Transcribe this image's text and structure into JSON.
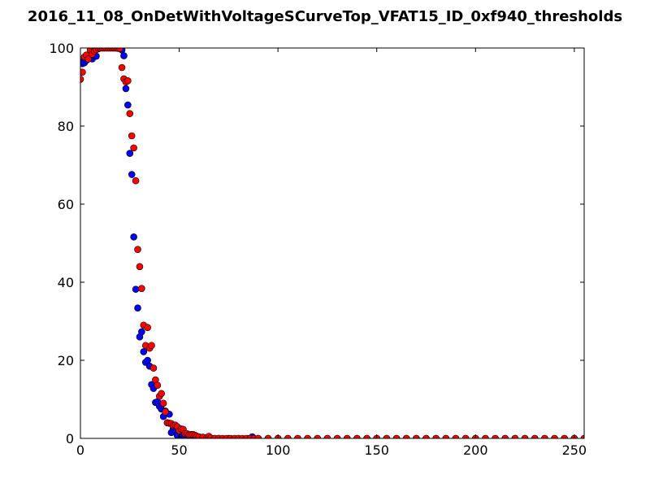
{
  "chart_data": {
    "type": "scatter",
    "title": "2016_11_08_OnDetWithVoltageSCurveTop_VFAT15_ID_0xf940_thresholds",
    "xlabel": "",
    "ylabel": "",
    "xlim": [
      0,
      255
    ],
    "ylim": [
      0,
      100
    ],
    "xticks": [
      0,
      50,
      100,
      150,
      200,
      250
    ],
    "yticks": [
      0,
      20,
      40,
      60,
      80,
      100
    ],
    "grid": false,
    "legend": "none",
    "series": [
      {
        "color": "#0000ff",
        "points": [
          [
            0,
            96.5
          ],
          [
            1,
            96.0
          ],
          [
            2,
            96.2
          ],
          [
            3,
            96.8
          ],
          [
            4,
            97.3
          ],
          [
            5,
            97.6
          ],
          [
            6,
            97.2
          ],
          [
            7,
            98.0
          ],
          [
            8,
            97.9
          ],
          [
            9,
            99.8
          ],
          [
            10,
            100
          ],
          [
            11,
            100
          ],
          [
            12,
            100
          ],
          [
            13,
            100
          ],
          [
            14,
            100
          ],
          [
            15,
            100
          ],
          [
            16,
            100
          ],
          [
            17,
            100
          ],
          [
            18,
            100
          ],
          [
            19,
            100
          ],
          [
            20,
            100
          ],
          [
            21,
            99.5
          ],
          [
            22,
            98.0
          ],
          [
            23,
            89.6
          ],
          [
            24,
            85.4
          ],
          [
            25,
            73.0
          ],
          [
            26,
            67.6
          ],
          [
            27,
            51.6
          ],
          [
            28,
            38.2
          ],
          [
            29,
            33.4
          ],
          [
            30,
            26.0
          ],
          [
            31,
            27.3
          ],
          [
            32,
            22.2
          ],
          [
            33,
            19.5
          ],
          [
            34,
            20.0
          ],
          [
            35,
            18.5
          ],
          [
            36,
            13.8
          ],
          [
            37,
            12.8
          ],
          [
            38,
            9.2
          ],
          [
            39,
            9.4
          ],
          [
            40,
            8.2
          ],
          [
            41,
            7.5
          ],
          [
            42,
            5.6
          ],
          [
            43,
            7.0
          ],
          [
            44,
            4.0
          ],
          [
            45,
            6.2
          ],
          [
            46,
            1.5
          ],
          [
            47,
            2.5
          ],
          [
            48,
            2.0
          ],
          [
            49,
            0.8
          ],
          [
            50,
            1.8
          ],
          [
            51,
            1.0
          ],
          [
            52,
            0.7
          ],
          [
            53,
            0.4
          ],
          [
            54,
            0.2
          ],
          [
            55,
            0.5
          ],
          [
            56,
            0.3
          ],
          [
            57,
            0.6
          ],
          [
            58,
            0.2
          ],
          [
            59,
            0.1
          ],
          [
            60,
            0
          ],
          [
            61,
            0.1
          ],
          [
            62,
            0
          ],
          [
            64,
            0
          ],
          [
            66,
            0
          ],
          [
            68,
            0
          ],
          [
            70,
            0
          ],
          [
            75,
            0
          ],
          [
            80,
            0
          ],
          [
            85,
            0
          ],
          [
            87,
            0.4
          ],
          [
            90,
            0
          ],
          [
            95,
            0
          ],
          [
            100,
            0
          ],
          [
            105,
            0
          ],
          [
            110,
            0
          ],
          [
            115,
            0
          ],
          [
            120,
            0
          ],
          [
            125,
            0
          ],
          [
            130,
            0
          ],
          [
            135,
            0
          ],
          [
            140,
            0
          ],
          [
            145,
            0
          ],
          [
            150,
            0
          ],
          [
            155,
            0
          ],
          [
            160,
            0
          ],
          [
            165,
            0
          ],
          [
            170,
            0
          ],
          [
            175,
            0
          ],
          [
            180,
            0
          ],
          [
            185,
            0
          ],
          [
            190,
            0
          ],
          [
            195,
            0
          ],
          [
            200,
            0
          ],
          [
            205,
            0
          ],
          [
            210,
            0
          ],
          [
            215,
            0
          ],
          [
            220,
            0
          ],
          [
            225,
            0
          ],
          [
            230,
            0
          ],
          [
            235,
            0
          ],
          [
            240,
            0
          ],
          [
            245,
            0
          ],
          [
            250,
            0
          ],
          [
            255,
            0
          ]
        ]
      },
      {
        "color": "#ff0000",
        "points": [
          [
            0,
            92.0
          ],
          [
            1,
            93.8
          ],
          [
            2,
            97.7
          ],
          [
            3,
            98.2
          ],
          [
            4,
            97.2
          ],
          [
            5,
            99.5
          ],
          [
            6,
            98.4
          ],
          [
            7,
            99.2
          ],
          [
            8,
            99.6
          ],
          [
            9,
            100
          ],
          [
            10,
            100
          ],
          [
            11,
            100
          ],
          [
            12,
            100
          ],
          [
            13,
            100
          ],
          [
            14,
            100
          ],
          [
            15,
            100
          ],
          [
            16,
            100
          ],
          [
            17,
            100
          ],
          [
            18,
            100
          ],
          [
            19,
            99.9
          ],
          [
            20,
            99.9
          ],
          [
            21,
            95.0
          ],
          [
            22,
            92.1
          ],
          [
            23,
            91.3
          ],
          [
            24,
            91.6
          ],
          [
            25,
            83.2
          ],
          [
            26,
            77.5
          ],
          [
            27,
            74.4
          ],
          [
            28,
            66.0
          ],
          [
            29,
            48.4
          ],
          [
            30,
            44.0
          ],
          [
            31,
            38.4
          ],
          [
            32,
            29.0
          ],
          [
            33,
            23.8
          ],
          [
            34,
            28.4
          ],
          [
            35,
            23.1
          ],
          [
            36,
            23.8
          ],
          [
            37,
            18.0
          ],
          [
            38,
            15.0
          ],
          [
            39,
            13.6
          ],
          [
            40,
            10.8
          ],
          [
            41,
            11.5
          ],
          [
            42,
            9.0
          ],
          [
            43,
            6.8
          ],
          [
            44,
            4.0
          ],
          [
            45,
            3.9
          ],
          [
            46,
            3.8
          ],
          [
            47,
            3.3
          ],
          [
            48,
            3.4
          ],
          [
            49,
            3.0
          ],
          [
            50,
            2.0
          ],
          [
            51,
            2.4
          ],
          [
            52,
            2.3
          ],
          [
            53,
            1.2
          ],
          [
            54,
            1.2
          ],
          [
            55,
            0.9
          ],
          [
            56,
            1.0
          ],
          [
            57,
            1.0
          ],
          [
            58,
            0.8
          ],
          [
            59,
            0.5
          ],
          [
            60,
            0.4
          ],
          [
            62,
            0.3
          ],
          [
            64,
            0.2
          ],
          [
            65,
            0.5
          ],
          [
            66,
            0.1
          ],
          [
            68,
            0
          ],
          [
            70,
            0
          ],
          [
            72,
            0
          ],
          [
            74,
            0
          ],
          [
            76,
            0
          ],
          [
            78,
            0
          ],
          [
            80,
            0
          ],
          [
            82,
            0
          ],
          [
            84,
            0
          ],
          [
            86,
            0
          ],
          [
            88,
            0
          ],
          [
            90,
            0
          ],
          [
            95,
            0
          ],
          [
            100,
            0
          ],
          [
            105,
            0
          ],
          [
            110,
            0
          ],
          [
            115,
            0
          ],
          [
            120,
            0
          ],
          [
            125,
            0
          ],
          [
            130,
            0
          ],
          [
            135,
            0
          ],
          [
            140,
            0
          ],
          [
            145,
            0
          ],
          [
            150,
            0
          ],
          [
            155,
            0
          ],
          [
            160,
            0
          ],
          [
            165,
            0
          ],
          [
            170,
            0
          ],
          [
            175,
            0
          ],
          [
            180,
            0
          ],
          [
            185,
            0
          ],
          [
            190,
            0
          ],
          [
            195,
            0
          ],
          [
            200,
            0
          ],
          [
            205,
            0
          ],
          [
            210,
            0
          ],
          [
            215,
            0
          ],
          [
            220,
            0
          ],
          [
            225,
            0
          ],
          [
            230,
            0
          ],
          [
            235,
            0
          ],
          [
            240,
            0
          ],
          [
            245,
            0
          ],
          [
            250,
            0
          ],
          [
            255,
            0
          ]
        ]
      }
    ]
  }
}
